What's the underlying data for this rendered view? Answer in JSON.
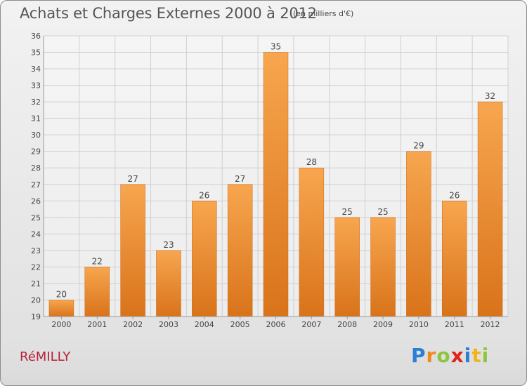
{
  "header": {
    "title": "Achats et Charges Externes 2000 à 2012",
    "subtitle": "(en milliers d'€)"
  },
  "footer": {
    "place": "RéMILLY",
    "logo_text": "Proxiti"
  },
  "colors": {
    "bar_top": "#f7a64f",
    "bar_bottom": "#d9731a",
    "grid": "#cfcfcf",
    "axis_text": "#444444",
    "place": "#b7213b"
  },
  "chart_data": {
    "type": "bar",
    "title": "Achats et Charges Externes 2000 à 2012",
    "subtitle": "(en milliers d'€)",
    "xlabel": "",
    "ylabel": "",
    "categories": [
      "2000",
      "2001",
      "2002",
      "2003",
      "2004",
      "2005",
      "2006",
      "2007",
      "2008",
      "2009",
      "2010",
      "2011",
      "2012"
    ],
    "values": [
      20,
      22,
      27,
      23,
      26,
      27,
      35,
      28,
      25,
      25,
      29,
      26,
      32
    ],
    "ylim": [
      19,
      36
    ],
    "yticks": [
      19,
      20,
      21,
      22,
      23,
      24,
      25,
      26,
      27,
      28,
      29,
      30,
      31,
      32,
      33,
      34,
      35,
      36
    ],
    "grid": true,
    "data_labels": true
  }
}
